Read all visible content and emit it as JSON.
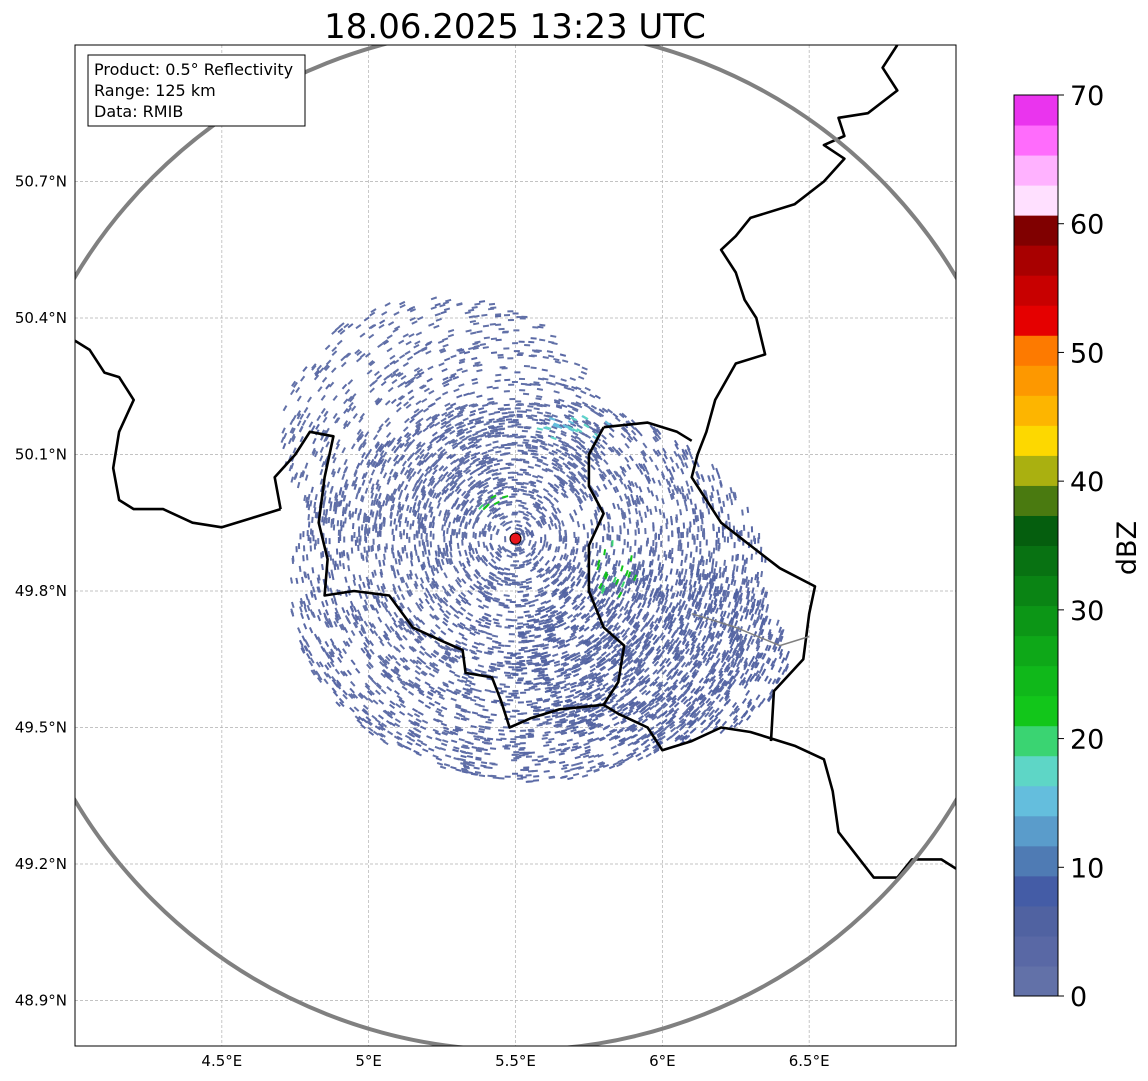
{
  "chart_data": {
    "type": "heatmap",
    "title": "18.06.2025 13:23 UTC",
    "info_box": [
      "Product: 0.5° Reflectivity",
      "Range: 125 km",
      "Data: RMIB"
    ],
    "x_ticks": [
      {
        "value": 4.5,
        "label": "4.5°E"
      },
      {
        "value": 5.0,
        "label": "5°E"
      },
      {
        "value": 5.5,
        "label": "5.5°E"
      },
      {
        "value": 6.0,
        "label": "6°E"
      },
      {
        "value": 6.5,
        "label": "6.5°E"
      }
    ],
    "y_ticks": [
      {
        "value": 50.7,
        "label": "50.7°N"
      },
      {
        "value": 50.4,
        "label": "50.4°N"
      },
      {
        "value": 50.1,
        "label": "50.1°N"
      },
      {
        "value": 49.8,
        "label": "49.8°N"
      },
      {
        "value": 49.5,
        "label": "49.5°N"
      },
      {
        "value": 49.2,
        "label": "49.2°N"
      },
      {
        "value": 48.9,
        "label": "48.9°N"
      }
    ],
    "xlim": [
      4.0,
      7.0
    ],
    "ylim": [
      48.8,
      51.0
    ],
    "grid": true,
    "radar_site": {
      "lon": 5.5,
      "lat": 49.915,
      "color": "#e8141c"
    },
    "range_ring_km": 125,
    "colorbar": {
      "label": "dBZ",
      "min": 0,
      "max": 70,
      "ticks": [
        0,
        10,
        20,
        30,
        40,
        50,
        60,
        70
      ],
      "colors": [
        "#6271a8",
        "#5968a5",
        "#5062a1",
        "#445ca6",
        "#4f7bb4",
        "#5a9ccb",
        "#64bedd",
        "#5ed6c6",
        "#3ad472",
        "#12c61a",
        "#10b81a",
        "#0ea818",
        "#0c9616",
        "#0a8414",
        "#087212",
        "#055e0e",
        "#4a7a10",
        "#aab010",
        "#fdd800",
        "#fdb500",
        "#fd9800",
        "#fd7a00",
        "#e50000",
        "#c80000",
        "#a80000",
        "#800000",
        "#ffe0ff",
        "#ffb2ff",
        "#ff6cfc",
        "#ea34ee"
      ]
    },
    "echo_regions": [
      {
        "lon": 5.55,
        "lat": 49.8,
        "rlon": 0.82,
        "rlat": 0.42,
        "dbz": 2,
        "coverage": 0.85
      },
      {
        "lon": 5.95,
        "lat": 49.66,
        "rlon": 0.48,
        "rlat": 0.2,
        "dbz": 4,
        "coverage": 0.9
      },
      {
        "lon": 5.25,
        "lat": 50.15,
        "rlon": 0.55,
        "rlat": 0.3,
        "dbz": 1,
        "coverage": 0.5
      },
      {
        "lon": 5.7,
        "lat": 50.16,
        "rlon": 0.12,
        "rlat": 0.03,
        "dbz": 16,
        "coverage": 0.5
      },
      {
        "lon": 5.42,
        "lat": 50.0,
        "rlon": 0.06,
        "rlat": 0.02,
        "dbz": 22,
        "coverage": 0.4
      },
      {
        "lon": 5.85,
        "lat": 49.85,
        "rlon": 0.1,
        "rlat": 0.06,
        "dbz": 22,
        "coverage": 0.25
      }
    ],
    "borders": [
      {
        "name": "border-west",
        "color": "#000000",
        "points": [
          [
            4.0,
            50.35
          ],
          [
            4.05,
            50.33
          ],
          [
            4.1,
            50.28
          ],
          [
            4.15,
            50.27
          ],
          [
            4.2,
            50.22
          ],
          [
            4.15,
            50.15
          ],
          [
            4.13,
            50.07
          ],
          [
            4.15,
            50.0
          ],
          [
            4.2,
            49.98
          ],
          [
            4.3,
            49.98
          ],
          [
            4.4,
            49.95
          ],
          [
            4.5,
            49.94
          ],
          [
            4.6,
            49.96
          ],
          [
            4.7,
            49.98
          ]
        ]
      },
      {
        "name": "border-belgium-france",
        "color": "#000000",
        "points": [
          [
            4.7,
            49.98
          ],
          [
            4.68,
            50.05
          ],
          [
            4.75,
            50.1
          ],
          [
            4.8,
            50.15
          ],
          [
            4.88,
            50.14
          ],
          [
            4.85,
            50.05
          ],
          [
            4.83,
            49.95
          ],
          [
            4.86,
            49.87
          ],
          [
            4.85,
            49.79
          ],
          [
            4.95,
            49.8
          ],
          [
            5.07,
            49.79
          ],
          [
            5.15,
            49.72
          ],
          [
            5.25,
            49.69
          ],
          [
            5.32,
            49.67
          ],
          [
            5.33,
            49.62
          ],
          [
            5.42,
            49.61
          ],
          [
            5.45,
            49.56
          ],
          [
            5.48,
            49.5
          ],
          [
            5.55,
            49.52
          ],
          [
            5.65,
            49.54
          ],
          [
            5.8,
            49.55
          ],
          [
            5.85,
            49.53
          ],
          [
            5.95,
            49.5
          ],
          [
            6.0,
            49.45
          ],
          [
            6.1,
            49.47
          ],
          [
            6.2,
            49.5
          ],
          [
            6.3,
            49.49
          ],
          [
            6.45,
            49.46
          ],
          [
            6.55,
            49.43
          ],
          [
            6.58,
            49.36
          ],
          [
            6.6,
            49.27
          ],
          [
            6.72,
            49.17
          ],
          [
            6.8,
            49.17
          ],
          [
            6.85,
            49.21
          ],
          [
            6.95,
            49.21
          ],
          [
            7.0,
            49.19
          ]
        ]
      },
      {
        "name": "border-luxembourg-west",
        "color": "#000000",
        "points": [
          [
            5.8,
            50.16
          ],
          [
            5.75,
            50.1
          ],
          [
            5.75,
            50.03
          ],
          [
            5.8,
            49.97
          ],
          [
            5.75,
            49.9
          ],
          [
            5.75,
            49.8
          ],
          [
            5.8,
            49.72
          ],
          [
            5.87,
            49.68
          ],
          [
            5.85,
            49.6
          ],
          [
            5.8,
            49.55
          ]
        ]
      },
      {
        "name": "border-germany-belgium",
        "color": "#000000",
        "points": [
          [
            6.8,
            51.0
          ],
          [
            6.75,
            50.95
          ],
          [
            6.8,
            50.9
          ],
          [
            6.7,
            50.85
          ],
          [
            6.6,
            50.84
          ],
          [
            6.62,
            50.8
          ],
          [
            6.55,
            50.78
          ],
          [
            6.62,
            50.75
          ],
          [
            6.55,
            50.7
          ],
          [
            6.45,
            50.65
          ],
          [
            6.3,
            50.62
          ],
          [
            6.25,
            50.58
          ],
          [
            6.2,
            50.55
          ],
          [
            6.25,
            50.5
          ],
          [
            6.28,
            50.44
          ],
          [
            6.32,
            50.4
          ],
          [
            6.35,
            50.32
          ],
          [
            6.25,
            50.3
          ],
          [
            6.18,
            50.22
          ],
          [
            6.15,
            50.15
          ],
          [
            6.12,
            50.1
          ],
          [
            6.1,
            50.05
          ],
          [
            6.15,
            50.0
          ],
          [
            6.2,
            49.95
          ],
          [
            6.3,
            49.9
          ],
          [
            6.4,
            49.85
          ],
          [
            6.52,
            49.81
          ],
          [
            6.5,
            49.75
          ],
          [
            6.48,
            49.65
          ],
          [
            6.38,
            49.58
          ],
          [
            6.37,
            49.47
          ]
        ]
      },
      {
        "name": "border-luxembourg-north",
        "color": "#000000",
        "points": [
          [
            5.8,
            50.16
          ],
          [
            5.95,
            50.17
          ],
          [
            6.05,
            50.15
          ],
          [
            6.1,
            50.13
          ]
        ]
      },
      {
        "name": "border-inner",
        "color": "#808080",
        "points": [
          [
            6.1,
            49.75
          ],
          [
            6.25,
            49.72
          ],
          [
            6.4,
            49.68
          ],
          [
            6.5,
            49.7
          ]
        ]
      }
    ]
  }
}
